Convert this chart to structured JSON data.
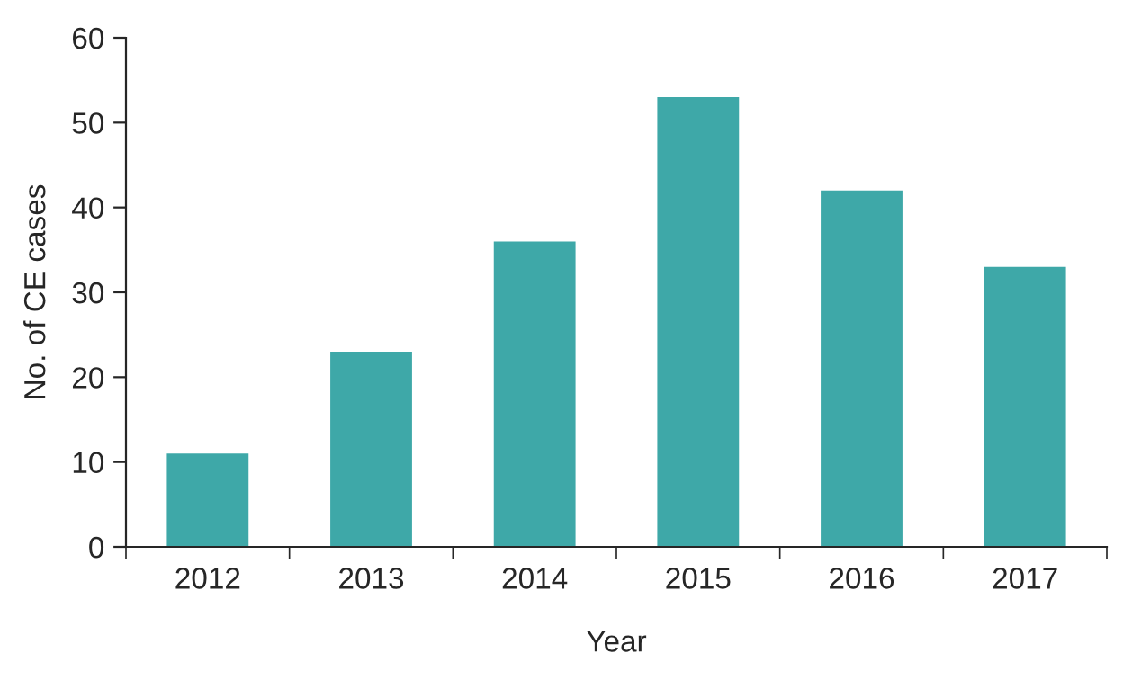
{
  "chart_data": {
    "type": "bar",
    "xlabel": "Year",
    "ylabel": "No. of CE cases",
    "categories": [
      "2012",
      "2013",
      "2014",
      "2015",
      "2016",
      "2017"
    ],
    "values": [
      11,
      23,
      36,
      53,
      42,
      33
    ],
    "color": "#3ea8a8",
    "ylim": [
      0,
      60
    ],
    "yticks": [
      0,
      10,
      20,
      30,
      40,
      50,
      60
    ],
    "grid": false,
    "legend": false
  }
}
